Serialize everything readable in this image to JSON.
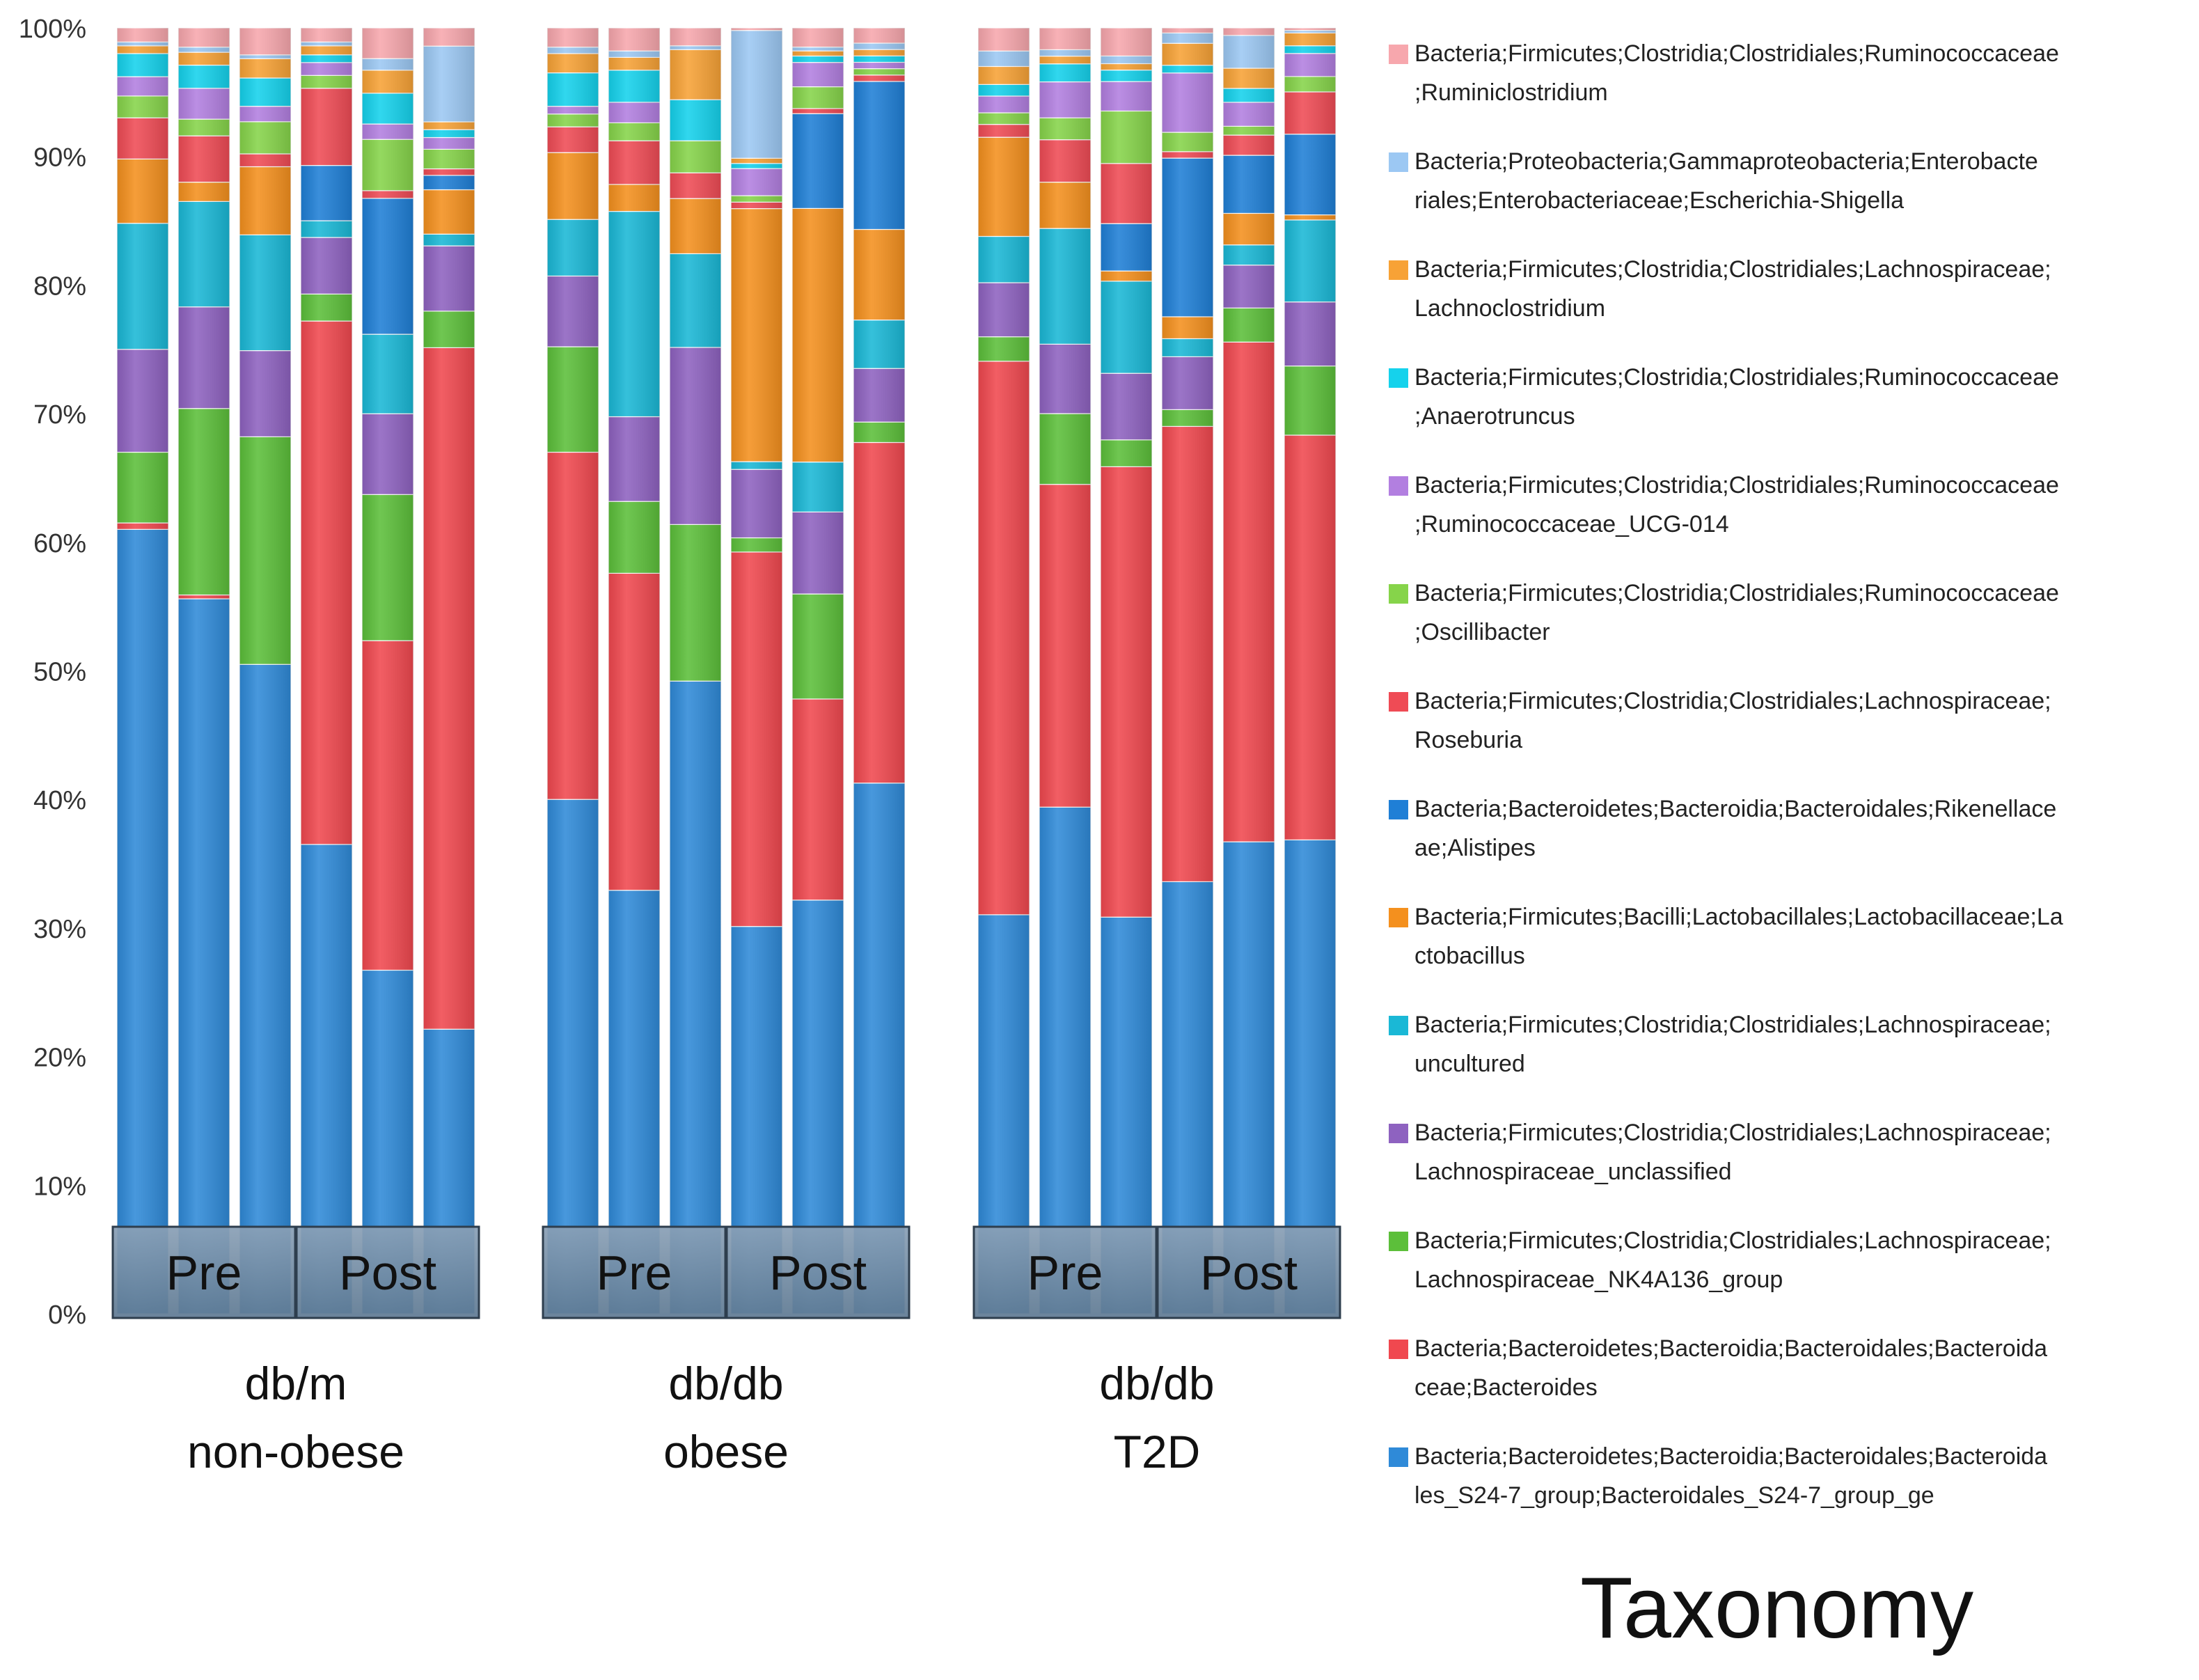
{
  "chart_data": {
    "type": "bar",
    "stacked": true,
    "normalized_percent": true,
    "title": "",
    "legend_title": "Taxonomy",
    "legend_position": "right",
    "xlabel": "",
    "ylabel": "",
    "ylim": [
      0,
      100
    ],
    "yticks": [
      "0%",
      "10%",
      "20%",
      "30%",
      "40%",
      "50%",
      "60%",
      "70%",
      "80%",
      "90%",
      "100%"
    ],
    "grid": false,
    "groups": [
      {
        "name_line1": "db/m",
        "name_line2": "non-obese",
        "phases": [
          "Pre",
          "Post"
        ],
        "bars_per_phase": 3
      },
      {
        "name_line1": "db/db",
        "name_line2": "obese",
        "phases": [
          "Pre",
          "Post"
        ],
        "bars_per_phase": 3
      },
      {
        "name_line1": "db/db",
        "name_line2": "T2D",
        "phases": [
          "Pre",
          "Post"
        ],
        "bars_per_phase": 3
      }
    ],
    "series": [
      {
        "name": "Bacteria;Bacteroidetes;Bacteroidia;Bacteroidales;Bacteroidales_S24-7_group;Bacteroidales_S24-7_group_ge",
        "legend_line1": "Bacteria;Bacteroidetes;Bacteroidia;Bacteroidales;Bacteroida",
        "legend_line2": "les_S24-7_group;Bacteroidales_S24-7_group_ge",
        "color": "#2f8ad8",
        "values": [
          61,
          55.6,
          50.5,
          36.5,
          26.8,
          21.8,
          40,
          33,
          49.3,
          30,
          32.3,
          41.6,
          31,
          39.4,
          31,
          33.5,
          37.4,
          37
        ]
      },
      {
        "name": "Bacteria;Bacteroidetes;Bacteroidia;Bacteroidales;Bacteroidaceae;Bacteroides",
        "legend_line1": "Bacteria;Bacteroidetes;Bacteroidia;Bacteroidales;Bacteroida",
        "legend_line2": "ceae;Bacteroides",
        "color": "#f0484f",
        "values": [
          0.5,
          0.3,
          0,
          40.7,
          25.7,
          52.2,
          27,
          24.7,
          0,
          29,
          15.7,
          26.7,
          43,
          25.1,
          35.2,
          35.3,
          39.6,
          31.6
        ]
      },
      {
        "name": "Bacteria;Firmicutes;Clostridia;Clostridiales;Lachnospiraceae;Lachnospiraceae_NK4A136_group",
        "legend_line1": "Bacteria;Firmicutes;Clostridia;Clostridiales;Lachnospiraceae;",
        "legend_line2": "Lachnospiraceae_NK4A136_group",
        "color": "#5cbf3a",
        "values": [
          5.5,
          14.5,
          17.7,
          2.1,
          11.4,
          2.8,
          8.2,
          5.6,
          12.2,
          1.1,
          8.2,
          1.6,
          1.9,
          5.5,
          2.1,
          1.3,
          2.7,
          5.4
        ]
      },
      {
        "name": "Bacteria;Firmicutes;Clostridia;Clostridiales;Lachnospiraceae;Lachnospiraceae_unclassified",
        "legend_line1": "Bacteria;Firmicutes;Clostridia;Clostridiales;Lachnospiraceae;",
        "legend_line2": "Lachnospiraceae_unclassified",
        "color": "#8e62c0",
        "values": [
          8,
          7.9,
          6.7,
          4.4,
          6.3,
          5,
          5.5,
          6.6,
          13.8,
          5.3,
          6.4,
          4.2,
          4.2,
          5.4,
          5.2,
          4.1,
          3.4,
          5
        ]
      },
      {
        "name": "Bacteria;Firmicutes;Clostridia;Clostridiales;Lachnospiraceae;uncultured",
        "legend_line1": "Bacteria;Firmicutes;Clostridia;Clostridiales;Lachnospiraceae;",
        "legend_line2": "uncultured",
        "color": "#1ab8d6",
        "values": [
          9.8,
          8.2,
          9,
          1.3,
          6.2,
          0.9,
          4.4,
          16,
          7.3,
          0.6,
          3.9,
          3.8,
          3.6,
          9,
          7.2,
          1.4,
          1.6,
          6.4
        ]
      },
      {
        "name": "Bacteria;Firmicutes;Bacilli;Lactobacillales;Lactobacillaceae;Lactobacillus",
        "legend_line1": "Bacteria;Firmicutes;Bacilli;Lactobacillales;Lactobacillaceae;La",
        "legend_line2": "ctobacillus",
        "color": "#f4901e",
        "values": [
          5,
          1.5,
          5.3,
          0,
          0,
          3.4,
          5.2,
          2.1,
          4.3,
          19.6,
          19.8,
          7.1,
          7.7,
          3.6,
          0.8,
          1.7,
          2.5,
          0.4
        ]
      },
      {
        "name": "Bacteria;Bacteroidetes;Bacteroidia;Bacteroidales;Rikenellaceae;Alistipes",
        "legend_line1": "Bacteria;Bacteroidetes;Bacteroidia;Bacteroidales;Rikenellace",
        "legend_line2": "ae;Alistipes",
        "color": "#1f7fd6",
        "values": [
          0,
          0,
          0,
          4.3,
          10.6,
          1.1,
          0,
          0,
          0,
          0,
          7.4,
          11.6,
          0,
          0,
          3.7,
          12.3,
          4.6,
          6.3
        ]
      },
      {
        "name": "Bacteria;Firmicutes;Clostridia;Clostridiales;Lachnospiraceae;Roseburia",
        "legend_line1": "Bacteria;Firmicutes;Clostridia;Clostridiales;Lachnospiraceae;",
        "legend_line2": "Roseburia",
        "color": "#ef4b55",
        "values": [
          3.2,
          3.6,
          1,
          6,
          0.6,
          0.5,
          2,
          3.4,
          2,
          0.5,
          0.4,
          0.5,
          1,
          3.3,
          4.7,
          0.5,
          1.6,
          3.3
        ]
      },
      {
        "name": "Bacteria;Firmicutes;Clostridia;Clostridiales;Ruminococcaceae;Oscillibacter",
        "legend_line1": "Bacteria;Firmicutes;Clostridia;Clostridiales;Ruminococcaceae",
        "legend_line2": ";Oscillibacter",
        "color": "#86d44a",
        "values": [
          1.7,
          1.3,
          2.5,
          1,
          4,
          1.5,
          1,
          1.4,
          2.5,
          0.5,
          1.7,
          0.5,
          0.9,
          1.7,
          4.1,
          1.5,
          0.7,
          1.2
        ]
      },
      {
        "name": "Bacteria;Firmicutes;Clostridia;Clostridiales;Ruminococcaceae;Ruminococcaceae_UCG-014",
        "legend_line1": "Bacteria;Firmicutes;Clostridia;Clostridiales;Ruminococcaceae",
        "legend_line2": ";Ruminococcaceae_UCG-014",
        "color": "#b27fe0",
        "values": [
          1.5,
          2.4,
          1.2,
          1,
          1.2,
          0.9,
          0.6,
          1.6,
          0,
          2.1,
          1.9,
          0.5,
          1.3,
          2.8,
          2.3,
          4.6,
          1.9,
          1.8
        ]
      },
      {
        "name": "Bacteria;Firmicutes;Clostridia;Clostridiales;Ruminococcaceae;Anaerotruncus",
        "legend_line1": "Bacteria;Firmicutes;Clostridia;Clostridiales;Ruminococcaceae",
        "legend_line2": ";Anaerotruncus",
        "color": "#15d2ec",
        "values": [
          1.8,
          1.8,
          2.2,
          0.6,
          2.4,
          0.6,
          2.6,
          2.5,
          3.2,
          0.4,
          0.5,
          0.5,
          0.9,
          1.4,
          0.9,
          0.6,
          1.1,
          0.6
        ]
      },
      {
        "name": "Bacteria;Firmicutes;Clostridia;Clostridiales;Lachnospiraceae;Lachnoclostridium",
        "legend_line1": "Bacteria;Firmicutes;Clostridia;Clostridiales;Lachnospiraceae;",
        "legend_line2": "Lachnoclostridium",
        "color": "#f7a236",
        "values": [
          0.6,
          1,
          1.5,
          0.7,
          1.8,
          0.6,
          1.5,
          1,
          3.9,
          0.4,
          0.4,
          0.5,
          1.4,
          0.6,
          0.5,
          1.7,
          1.6,
          1
        ]
      },
      {
        "name": "Bacteria;Proteobacteria;Gammaproteobacteria;Enterobacteriales;Enterobacteriaceae;Escherichia-Shigella",
        "legend_line1": "Bacteria;Proteobacteria;Gammaproteobacteria;Enterobacte",
        "legend_line2": "riales;Enterobacteriaceae;Escherichia-Shigella",
        "color": "#9cc8f3",
        "values": [
          0.3,
          0.4,
          0.3,
          0.3,
          0.9,
          5.8,
          0.5,
          0.5,
          0.3,
          9.9,
          0.3,
          0.5,
          1.2,
          0.5,
          0.6,
          0.8,
          2.6,
          0.2
        ]
      },
      {
        "name": "Bacteria;Firmicutes;Clostridia;Clostridiales;Ruminococcaceae;Ruminiclostridium",
        "legend_line1": "Bacteria;Firmicutes;Clostridia;Clostridiales;Ruminococcaceae",
        "legend_line2": ";Ruminiclostridium",
        "color": "#f7a7ad",
        "values": [
          1.1,
          1.5,
          2.1,
          1.1,
          2.4,
          1.4,
          1.5,
          1.8,
          1.4,
          0.2,
          1.5,
          1.2,
          1.8,
          1.7,
          2.2,
          0.4,
          0.6,
          0.2
        ]
      }
    ]
  }
}
